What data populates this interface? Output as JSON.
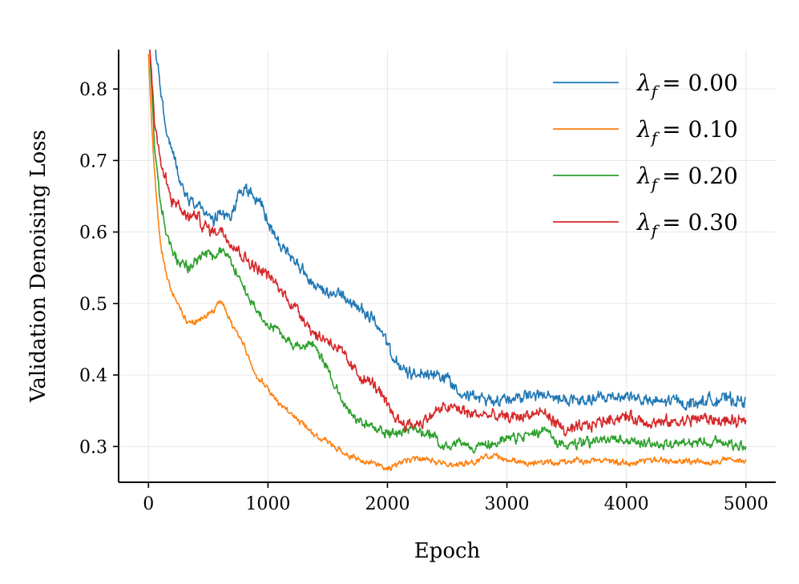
{
  "chart_data": {
    "type": "line",
    "title": "",
    "xlabel": "Epoch",
    "ylabel": "Validation Denoising Loss",
    "xlim": [
      -250,
      5250
    ],
    "ylim": [
      0.25,
      0.855
    ],
    "xticks": [
      0,
      1000,
      2000,
      3000,
      4000,
      5000
    ],
    "yticks": [
      0.3,
      0.4,
      0.5,
      0.6,
      0.7,
      0.8
    ],
    "xtick_labels": [
      "0",
      "1000",
      "2000",
      "3000",
      "4000",
      "5000"
    ],
    "ytick_labels": [
      "0.3",
      "0.4",
      "0.5",
      "0.6",
      "0.7",
      "0.8"
    ],
    "grid": true,
    "legend_position": "top-right",
    "series": [
      {
        "name": "λf = 0.00",
        "legend_symbol": "λ",
        "legend_sub": "f",
        "legend_value": "= 0.00",
        "color": "#1f77b4",
        "noise": 0.006,
        "x": [
          0,
          50,
          100,
          150,
          200,
          250,
          300,
          350,
          400,
          450,
          500,
          550,
          600,
          650,
          700,
          750,
          800,
          850,
          900,
          950,
          1000,
          1100,
          1200,
          1300,
          1400,
          1500,
          1600,
          1700,
          1800,
          1900,
          2000,
          2100,
          2200,
          2300,
          2400,
          2500,
          2600,
          2700,
          2800,
          2900,
          3000,
          3100,
          3200,
          3300,
          3400,
          3500,
          3600,
          3700,
          3800,
          3900,
          4000,
          4100,
          4200,
          4300,
          4400,
          4500,
          4600,
          4700,
          4800,
          4900,
          5000
        ],
        "y": [
          0.95,
          0.87,
          0.8,
          0.74,
          0.715,
          0.68,
          0.66,
          0.645,
          0.64,
          0.635,
          0.62,
          0.615,
          0.625,
          0.62,
          0.63,
          0.65,
          0.66,
          0.655,
          0.645,
          0.635,
          0.615,
          0.58,
          0.565,
          0.545,
          0.52,
          0.51,
          0.515,
          0.5,
          0.49,
          0.475,
          0.44,
          0.41,
          0.4,
          0.405,
          0.4,
          0.395,
          0.38,
          0.37,
          0.365,
          0.365,
          0.367,
          0.37,
          0.372,
          0.37,
          0.368,
          0.365,
          0.362,
          0.365,
          0.368,
          0.37,
          0.372,
          0.367,
          0.362,
          0.362,
          0.365,
          0.36,
          0.362,
          0.365,
          0.367,
          0.365,
          0.363
        ]
      },
      {
        "name": "λf = 0.10",
        "legend_symbol": "λ",
        "legend_sub": "f",
        "legend_value": "= 0.10",
        "color": "#ff7f0e",
        "noise": 0.003,
        "x": [
          0,
          30,
          60,
          100,
          150,
          200,
          250,
          300,
          350,
          400,
          450,
          500,
          550,
          600,
          650,
          700,
          750,
          800,
          850,
          900,
          950,
          1000,
          1100,
          1200,
          1300,
          1400,
          1500,
          1600,
          1700,
          1800,
          1900,
          2000,
          2050,
          2100,
          2200,
          2300,
          2400,
          2500,
          2600,
          2700,
          2800,
          2900,
          3000,
          3100,
          3200,
          3300,
          3400,
          3500,
          3600,
          3700,
          3800,
          3900,
          4000,
          4100,
          4200,
          4300,
          4400,
          4500,
          4600,
          4700,
          4800,
          4900,
          5000
        ],
        "y": [
          0.85,
          0.74,
          0.66,
          0.58,
          0.54,
          0.515,
          0.5,
          0.48,
          0.47,
          0.475,
          0.48,
          0.485,
          0.49,
          0.505,
          0.49,
          0.47,
          0.455,
          0.445,
          0.415,
          0.4,
          0.39,
          0.38,
          0.36,
          0.345,
          0.33,
          0.315,
          0.305,
          0.295,
          0.285,
          0.28,
          0.277,
          0.27,
          0.272,
          0.278,
          0.281,
          0.282,
          0.279,
          0.275,
          0.276,
          0.278,
          0.283,
          0.29,
          0.281,
          0.278,
          0.276,
          0.278,
          0.277,
          0.279,
          0.281,
          0.28,
          0.283,
          0.279,
          0.277,
          0.279,
          0.281,
          0.28,
          0.278,
          0.279,
          0.28,
          0.279,
          0.281,
          0.28,
          0.28
        ]
      },
      {
        "name": "λf = 0.20",
        "legend_symbol": "λ",
        "legend_sub": "f",
        "legend_value": "= 0.20",
        "color": "#2ca02c",
        "noise": 0.005,
        "x": [
          0,
          50,
          100,
          150,
          200,
          250,
          300,
          350,
          400,
          450,
          500,
          550,
          600,
          650,
          700,
          750,
          800,
          900,
          1000,
          1100,
          1200,
          1300,
          1350,
          1400,
          1450,
          1500,
          1600,
          1700,
          1800,
          1900,
          2000,
          2100,
          2200,
          2300,
          2400,
          2500,
          2600,
          2700,
          2800,
          2900,
          3000,
          3100,
          3200,
          3300,
          3400,
          3500,
          3600,
          3700,
          3800,
          3900,
          4000,
          4100,
          4200,
          4300,
          4400,
          4500,
          4600,
          4700,
          4800,
          4900,
          5000
        ],
        "y": [
          0.9,
          0.72,
          0.64,
          0.6,
          0.57,
          0.56,
          0.555,
          0.55,
          0.56,
          0.565,
          0.57,
          0.565,
          0.575,
          0.57,
          0.555,
          0.54,
          0.52,
          0.49,
          0.47,
          0.46,
          0.445,
          0.435,
          0.445,
          0.44,
          0.425,
          0.41,
          0.37,
          0.345,
          0.33,
          0.325,
          0.32,
          0.32,
          0.325,
          0.32,
          0.31,
          0.3,
          0.305,
          0.3,
          0.302,
          0.305,
          0.31,
          0.312,
          0.318,
          0.322,
          0.31,
          0.3,
          0.303,
          0.306,
          0.31,
          0.308,
          0.307,
          0.306,
          0.305,
          0.303,
          0.302,
          0.304,
          0.306,
          0.308,
          0.306,
          0.304,
          0.303
        ]
      },
      {
        "name": "λf = 0.30",
        "legend_symbol": "λ",
        "legend_sub": "f",
        "legend_value": "= 0.30",
        "color": "#d62728",
        "noise": 0.006,
        "x": [
          0,
          50,
          100,
          150,
          200,
          250,
          300,
          350,
          400,
          450,
          500,
          550,
          600,
          650,
          700,
          750,
          800,
          900,
          1000,
          1100,
          1200,
          1300,
          1400,
          1500,
          1600,
          1700,
          1800,
          1900,
          2000,
          2100,
          2200,
          2300,
          2400,
          2500,
          2600,
          2700,
          2800,
          2900,
          3000,
          3100,
          3200,
          3300,
          3400,
          3500,
          3600,
          3700,
          3800,
          3900,
          4000,
          4100,
          4200,
          4300,
          4400,
          4500,
          4600,
          4700,
          4800,
          4900,
          5000
        ],
        "y": [
          0.88,
          0.76,
          0.7,
          0.67,
          0.645,
          0.635,
          0.625,
          0.62,
          0.625,
          0.61,
          0.605,
          0.6,
          0.605,
          0.595,
          0.585,
          0.575,
          0.565,
          0.55,
          0.54,
          0.52,
          0.5,
          0.48,
          0.455,
          0.45,
          0.435,
          0.41,
          0.395,
          0.385,
          0.355,
          0.335,
          0.33,
          0.335,
          0.348,
          0.355,
          0.352,
          0.345,
          0.345,
          0.342,
          0.34,
          0.342,
          0.345,
          0.348,
          0.335,
          0.32,
          0.325,
          0.33,
          0.336,
          0.34,
          0.342,
          0.338,
          0.334,
          0.333,
          0.334,
          0.336,
          0.34,
          0.338,
          0.336,
          0.334,
          0.333
        ]
      }
    ]
  }
}
